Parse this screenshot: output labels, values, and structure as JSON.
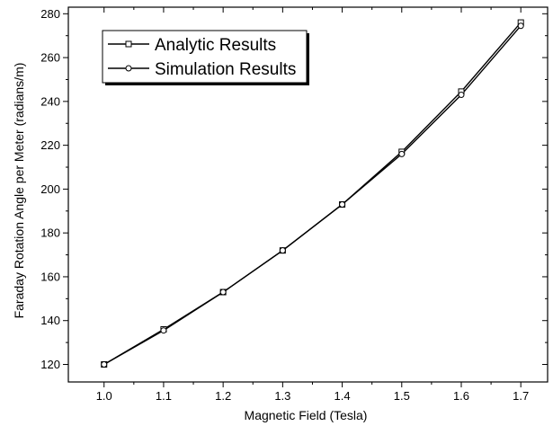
{
  "chart_data": {
    "type": "line",
    "title": "",
    "xlabel": "Magnetic Field (Tesla)",
    "ylabel": "Faraday Rotation Angle per Meter (radians/m)",
    "x": [
      1.0,
      1.1,
      1.2,
      1.3,
      1.4,
      1.5,
      1.6,
      1.7
    ],
    "xlim": [
      0.94,
      1.745
    ],
    "ylim": [
      112,
      283
    ],
    "xticks": [
      "1.0",
      "1.1",
      "1.2",
      "1.3",
      "1.4",
      "1.5",
      "1.6",
      "1.7"
    ],
    "yticks": [
      "120",
      "140",
      "160",
      "180",
      "200",
      "220",
      "240",
      "260",
      "280"
    ],
    "grid": false,
    "legend_position": "top-left",
    "series": [
      {
        "name": "Analytic Results",
        "marker": "square",
        "values": [
          120.0,
          136.0,
          153.0,
          172.0,
          193.0,
          217.0,
          244.5,
          276.0
        ]
      },
      {
        "name": "Simulation Results",
        "marker": "circle",
        "values": [
          120.0,
          135.5,
          153.0,
          172.0,
          193.0,
          216.0,
          243.0,
          274.5
        ]
      }
    ]
  }
}
